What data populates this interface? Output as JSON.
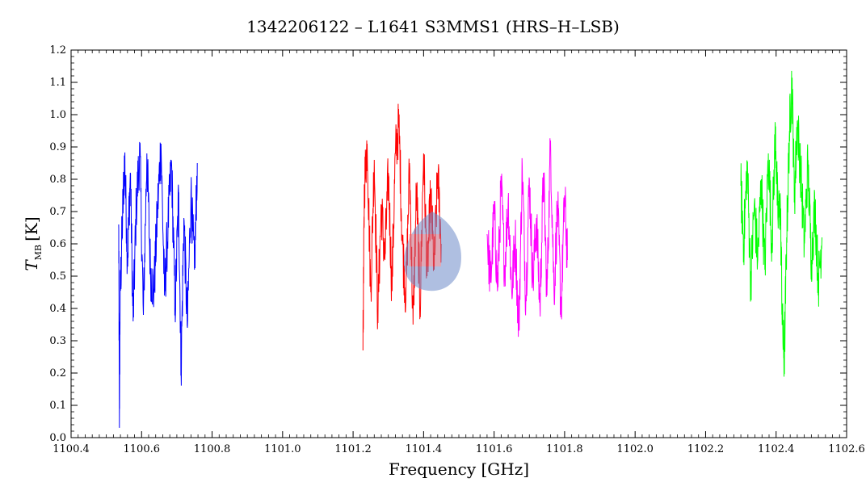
{
  "chart_data": {
    "type": "line",
    "title": "1342206122 – L1641 S3MMS1 (HRS–H–LSB)",
    "xlabel": "Frequency [GHz]",
    "ylabel_main": "T",
    "ylabel_sub": "MB",
    "ylabel_unit": "[K]",
    "xlim": [
      1100.4,
      1102.6
    ],
    "ylim": [
      0.0,
      1.2
    ],
    "xticks": [
      "1100.4",
      "1100.6",
      "1100.8",
      "1101.0",
      "1101.2",
      "1101.4",
      "1101.6",
      "1101.8",
      "1102.0",
      "1102.2",
      "1102.4",
      "1102.6"
    ],
    "yticks": [
      "0.0",
      "0.1",
      "0.2",
      "0.3",
      "0.4",
      "0.5",
      "0.6",
      "0.7",
      "0.8",
      "0.9",
      "1.0",
      "1.1",
      "1.2"
    ],
    "grid": false,
    "series": [
      {
        "color": "#0000ff",
        "x": [
          1100.535,
          1100.537,
          1100.539,
          1100.545,
          1100.552,
          1100.56,
          1100.568,
          1100.576,
          1100.585,
          1100.595,
          1100.605,
          1100.615,
          1100.625,
          1100.635,
          1100.645,
          1100.655,
          1100.665,
          1100.675,
          1100.685,
          1100.695,
          1100.705,
          1100.712,
          1100.72,
          1100.73,
          1100.74,
          1100.75,
          1100.758
        ],
        "y": [
          0.66,
          0.06,
          0.42,
          0.65,
          0.87,
          0.55,
          0.82,
          0.36,
          0.72,
          0.89,
          0.38,
          0.88,
          0.52,
          0.45,
          0.7,
          0.91,
          0.44,
          0.66,
          0.85,
          0.4,
          0.75,
          0.21,
          0.68,
          0.34,
          0.76,
          0.52,
          0.85
        ]
      },
      {
        "color": "#ff0000",
        "x": [
          1101.228,
          1101.232,
          1101.24,
          1101.25,
          1101.26,
          1101.27,
          1101.28,
          1101.29,
          1101.3,
          1101.31,
          1101.32,
          1101.33,
          1101.34,
          1101.35,
          1101.36,
          1101.37,
          1101.38,
          1101.39,
          1101.4,
          1101.41,
          1101.42,
          1101.43,
          1101.44,
          1101.45
        ],
        "y": [
          0.27,
          0.78,
          0.91,
          0.45,
          0.86,
          0.38,
          0.72,
          0.55,
          0.82,
          0.46,
          0.88,
          0.97,
          0.6,
          0.43,
          0.85,
          0.35,
          0.78,
          0.4,
          0.88,
          0.5,
          0.75,
          0.52,
          0.82,
          0.6
        ]
      },
      {
        "color": "#ff00ff",
        "x": [
          1101.58,
          1101.59,
          1101.6,
          1101.61,
          1101.62,
          1101.63,
          1101.64,
          1101.65,
          1101.66,
          1101.67,
          1101.68,
          1101.69,
          1101.7,
          1101.71,
          1101.72,
          1101.73,
          1101.74,
          1101.75,
          1101.76,
          1101.77,
          1101.78,
          1101.79,
          1101.8,
          1101.808
        ],
        "y": [
          0.63,
          0.48,
          0.7,
          0.46,
          0.78,
          0.52,
          0.74,
          0.45,
          0.62,
          0.33,
          0.84,
          0.42,
          0.8,
          0.48,
          0.68,
          0.4,
          0.82,
          0.44,
          0.92,
          0.45,
          0.72,
          0.39,
          0.75,
          0.55
        ]
      },
      {
        "color": "#00ff00",
        "x": [
          1102.3,
          1102.308,
          1102.318,
          1102.328,
          1102.338,
          1102.348,
          1102.358,
          1102.368,
          1102.378,
          1102.388,
          1102.398,
          1102.405,
          1102.412,
          1102.418,
          1102.423,
          1102.43,
          1102.438,
          1102.445,
          1102.452,
          1102.46,
          1102.47,
          1102.48,
          1102.49,
          1102.5,
          1102.51,
          1102.52,
          1102.53
        ],
        "y": [
          0.78,
          0.6,
          0.85,
          0.48,
          0.72,
          0.55,
          0.8,
          0.52,
          0.88,
          0.6,
          0.95,
          0.68,
          0.72,
          0.35,
          0.23,
          0.62,
          0.95,
          1.11,
          0.74,
          0.98,
          0.82,
          0.6,
          0.85,
          0.55,
          0.72,
          0.48,
          0.62
        ]
      }
    ]
  }
}
